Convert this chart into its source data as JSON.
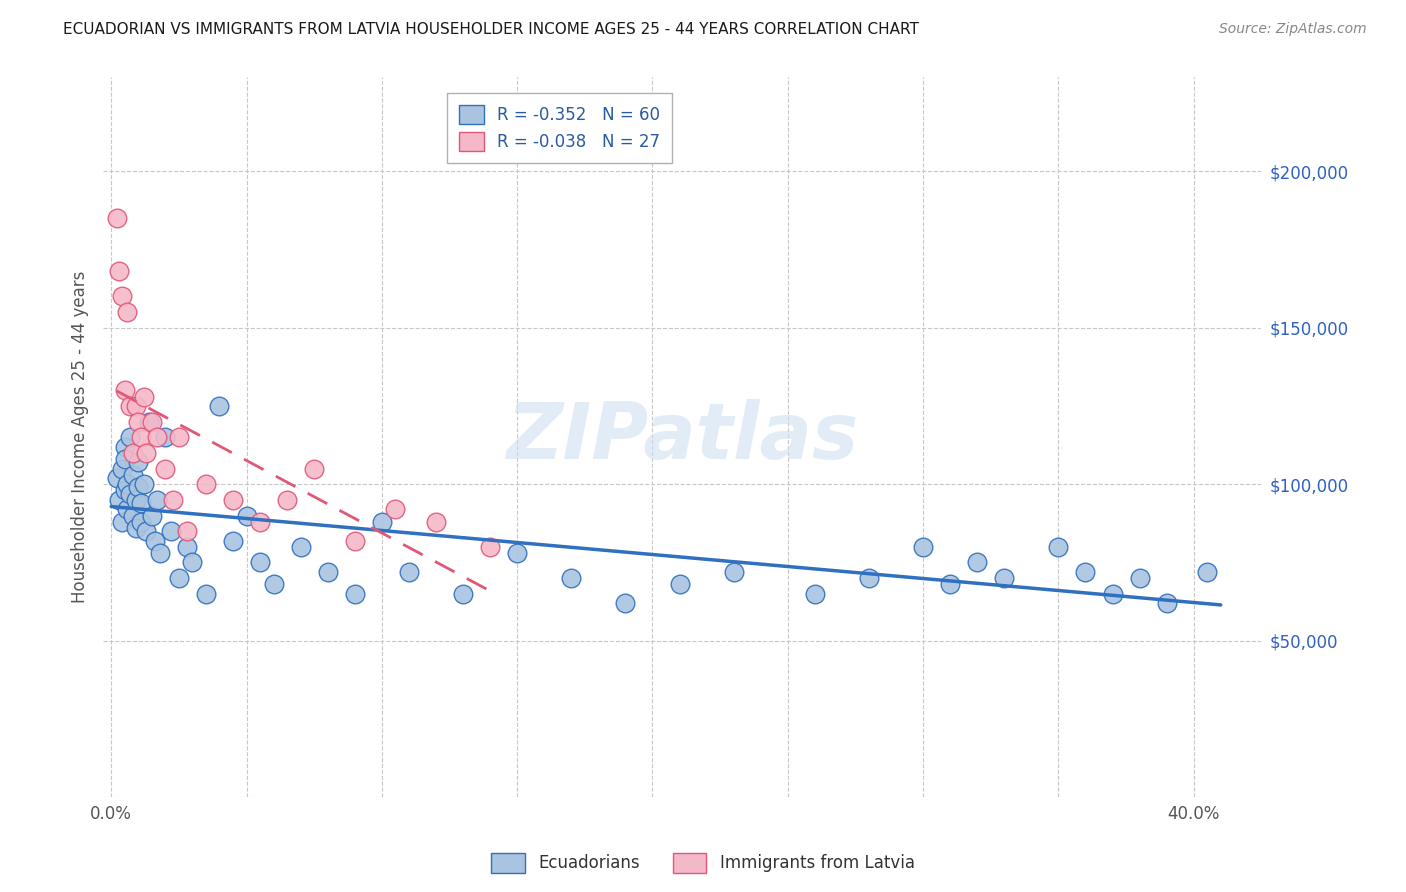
{
  "title": "ECUADORIAN VS IMMIGRANTS FROM LATVIA HOUSEHOLDER INCOME AGES 25 - 44 YEARS CORRELATION CHART",
  "source": "Source: ZipAtlas.com",
  "ylabel": "Householder Income Ages 25 - 44 years",
  "xlabel_ticks": [
    "0.0%",
    "",
    "",
    "",
    "",
    "",
    "",
    "",
    "40.0%"
  ],
  "xlabel_vals": [
    0.0,
    0.05,
    0.1,
    0.15,
    0.2,
    0.25,
    0.3,
    0.35,
    0.4
  ],
  "ylim": [
    0,
    230000
  ],
  "xlim": [
    -0.003,
    0.425
  ],
  "ytick_vals": [
    0,
    50000,
    100000,
    150000,
    200000
  ],
  "ytick_labels": [
    "",
    "$50,000",
    "$100,000",
    "$150,000",
    "$200,000"
  ],
  "ecuadorians_x": [
    0.002,
    0.003,
    0.004,
    0.004,
    0.005,
    0.005,
    0.005,
    0.006,
    0.006,
    0.007,
    0.007,
    0.008,
    0.008,
    0.009,
    0.009,
    0.01,
    0.01,
    0.011,
    0.011,
    0.012,
    0.013,
    0.014,
    0.015,
    0.016,
    0.017,
    0.018,
    0.02,
    0.022,
    0.025,
    0.028,
    0.03,
    0.035,
    0.04,
    0.045,
    0.05,
    0.055,
    0.06,
    0.07,
    0.08,
    0.09,
    0.1,
    0.11,
    0.13,
    0.15,
    0.17,
    0.19,
    0.21,
    0.23,
    0.26,
    0.28,
    0.3,
    0.31,
    0.32,
    0.33,
    0.35,
    0.36,
    0.37,
    0.38,
    0.39,
    0.405
  ],
  "ecuadorians_y": [
    102000,
    95000,
    88000,
    105000,
    112000,
    98000,
    108000,
    92000,
    100000,
    97000,
    115000,
    90000,
    103000,
    86000,
    95000,
    99000,
    107000,
    88000,
    94000,
    100000,
    85000,
    120000,
    90000,
    82000,
    95000,
    78000,
    115000,
    85000,
    70000,
    80000,
    75000,
    65000,
    125000,
    82000,
    90000,
    75000,
    68000,
    80000,
    72000,
    65000,
    88000,
    72000,
    65000,
    78000,
    70000,
    62000,
    68000,
    72000,
    65000,
    70000,
    80000,
    68000,
    75000,
    70000,
    80000,
    72000,
    65000,
    70000,
    62000,
    72000
  ],
  "latvia_x": [
    0.002,
    0.003,
    0.004,
    0.005,
    0.006,
    0.007,
    0.008,
    0.009,
    0.01,
    0.011,
    0.012,
    0.013,
    0.015,
    0.017,
    0.02,
    0.023,
    0.025,
    0.028,
    0.035,
    0.045,
    0.055,
    0.065,
    0.075,
    0.09,
    0.105,
    0.12,
    0.14
  ],
  "latvia_y": [
    185000,
    168000,
    160000,
    130000,
    155000,
    125000,
    110000,
    125000,
    120000,
    115000,
    128000,
    110000,
    120000,
    115000,
    105000,
    95000,
    115000,
    85000,
    100000,
    95000,
    88000,
    95000,
    105000,
    82000,
    92000,
    88000,
    80000
  ],
  "ecuador_color": "#aac4e0",
  "ecuador_line_color": "#3070c0",
  "latvia_color": "#f5b8c8",
  "latvia_line_color": "#e05878",
  "R_ecuador": -0.352,
  "N_ecuador": 60,
  "R_latvia": -0.038,
  "N_latvia": 27,
  "watermark": "ZIPatlas",
  "background_color": "#ffffff",
  "grid_color": "#c8c8c8"
}
